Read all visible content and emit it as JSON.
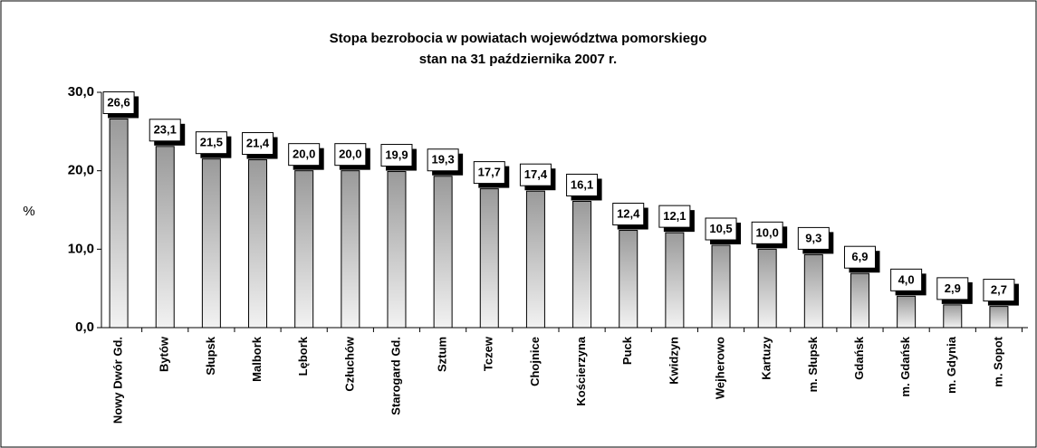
{
  "chart_data": {
    "type": "bar",
    "title": "Stopa bezrobocia w powiatach województwa pomorskiego",
    "subtitle": "stan na 31 października 2007 r.",
    "y_label": "%",
    "categories": [
      "Nowy Dwór Gd.",
      "Bytów",
      "Słupsk",
      "Malbork",
      "Lębork",
      "Człuchów",
      "Starogard Gd.",
      "Sztum",
      "Tczew",
      "Chojnice",
      "Kościerzyna",
      "Puck",
      "Kwidzyn",
      "Wejherowo",
      "Kartuzy",
      "m. Słupsk",
      "Gdańsk",
      "m. Gdańsk",
      "m. Gdynia",
      "m. Sopot"
    ],
    "values": [
      26.6,
      23.1,
      21.5,
      21.4,
      20.0,
      20.0,
      19.9,
      19.3,
      17.7,
      17.4,
      16.1,
      12.4,
      12.1,
      10.5,
      10.0,
      9.3,
      6.9,
      4.0,
      2.9,
      2.7
    ],
    "value_labels": [
      "26,6",
      "23,1",
      "21,5",
      "21,4",
      "20,0",
      "20,0",
      "19,9",
      "19,3",
      "17,7",
      "17,4",
      "16,1",
      "12,4",
      "12,1",
      "10,5",
      "10,0",
      "9,3",
      "6,9",
      "4,0",
      "2,9",
      "2,7"
    ],
    "color": "#a6a6a6",
    "ylim": [
      0,
      30
    ],
    "yticks": [
      {
        "value": 0,
        "label": "0,0"
      },
      {
        "value": 10,
        "label": "10,0"
      },
      {
        "value": 20,
        "label": "20,0"
      },
      {
        "value": 30,
        "label": "30,0"
      }
    ],
    "grid": false
  }
}
